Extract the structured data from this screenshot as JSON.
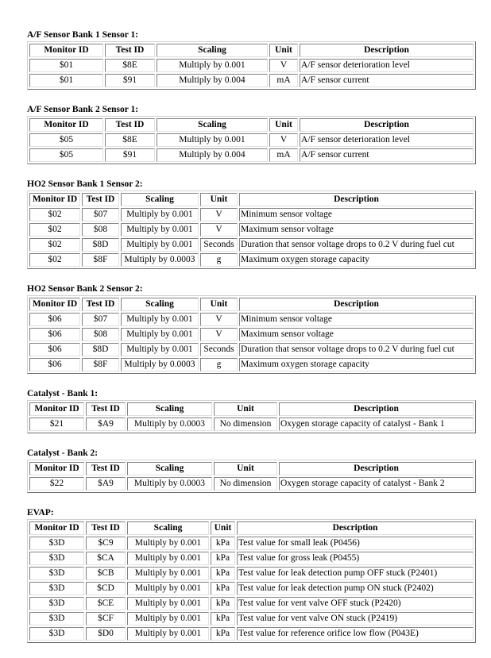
{
  "columns": [
    "Monitor ID",
    "Test ID",
    "Scaling",
    "Unit",
    "Description"
  ],
  "sections": [
    {
      "title": "A/F Sensor Bank 1 Sensor 1:",
      "rows": [
        [
          "$01",
          "$8E",
          "Multiply by 0.001",
          "V",
          "A/F sensor deterioration level"
        ],
        [
          "$01",
          "$91",
          "Multiply by 0.004",
          "mA",
          "A/F sensor current"
        ]
      ]
    },
    {
      "title": "A/F Sensor Bank 2 Sensor 1:",
      "rows": [
        [
          "$05",
          "$8E",
          "Multiply by 0.001",
          "V",
          "A/F sensor deterioration level"
        ],
        [
          "$05",
          "$91",
          "Multiply by 0.004",
          "mA",
          "A/F sensor current"
        ]
      ]
    },
    {
      "title": "HO2 Sensor Bank 1 Sensor 2:",
      "rows": [
        [
          "$02",
          "$07",
          "Multiply by 0.001",
          "V",
          "Minimum sensor voltage"
        ],
        [
          "$02",
          "$08",
          "Multiply by 0.001",
          "V",
          "Maximum sensor voltage"
        ],
        [
          "$02",
          "$8D",
          "Multiply by 0.001",
          "Seconds",
          "Duration that sensor voltage drops to 0.2 V during fuel cut"
        ],
        [
          "$02",
          "$8F",
          "Multiply by 0.0003",
          "g",
          "Maximum oxygen storage capacity"
        ]
      ]
    },
    {
      "title": "HO2 Sensor Bank 2 Sensor 2:",
      "rows": [
        [
          "$06",
          "$07",
          "Multiply by 0.001",
          "V",
          "Minimum sensor voltage"
        ],
        [
          "$06",
          "$08",
          "Multiply by 0.001",
          "V",
          "Maximum sensor voltage"
        ],
        [
          "$06",
          "$8D",
          "Multiply by 0.001",
          "Seconds",
          "Duration that sensor voltage drops to 0.2 V during fuel cut"
        ],
        [
          "$06",
          "$8F",
          "Multiply by 0.0003",
          "g",
          "Maximum oxygen storage capacity"
        ]
      ]
    },
    {
      "title": "Catalyst - Bank 1:",
      "rows": [
        [
          "$21",
          "$A9",
          "Multiply by 0.0003",
          "No dimension",
          "Oxygen storage capacity of catalyst - Bank 1"
        ]
      ]
    },
    {
      "title": "Catalyst - Bank 2:",
      "rows": [
        [
          "$22",
          "$A9",
          "Multiply by 0.0003",
          "No dimension",
          "Oxygen storage capacity of catalyst - Bank 2"
        ]
      ]
    },
    {
      "title": "EVAP:",
      "rows": [
        [
          "$3D",
          "$C9",
          "Multiply by 0.001",
          "kPa",
          "Test value for small leak (P0456)"
        ],
        [
          "$3D",
          "$CA",
          "Multiply by 0.001",
          "kPa",
          "Test value for gross leak (P0455)"
        ],
        [
          "$3D",
          "$CB",
          "Multiply by 0.001",
          "kPa",
          "Test value for leak detection pump OFF stuck (P2401)"
        ],
        [
          "$3D",
          "$CD",
          "Multiply by 0.001",
          "kPa",
          "Test value for leak detection pump ON stuck (P2402)"
        ],
        [
          "$3D",
          "$CE",
          "Multiply by 0.001",
          "kPa",
          "Test value for vent valve OFF stuck (P2420)"
        ],
        [
          "$3D",
          "$CF",
          "Multiply by 0.001",
          "kPa",
          "Test value for vent valve ON stuck (P2419)"
        ],
        [
          "$3D",
          "$D0",
          "Multiply by 0.001",
          "kPa",
          "Test value for reference orifice low flow (P043E)"
        ]
      ]
    }
  ]
}
